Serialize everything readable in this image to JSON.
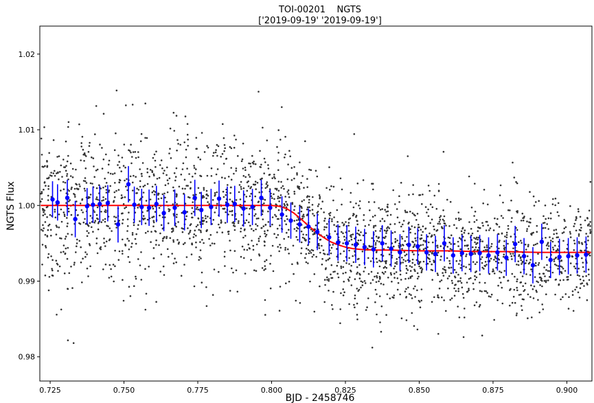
{
  "chart_data": {
    "type": "scatter",
    "title": "TOI-00201    NGTS",
    "subtitle": "['2019-09-19' '2019-09-19']",
    "xlabel": "BJD - 2458746",
    "ylabel": "NGTS Flux",
    "xlim": [
      0.7215,
      0.9085
    ],
    "ylim": [
      0.9768,
      1.0237
    ],
    "x_ticks": [
      0.725,
      0.75,
      0.775,
      0.8,
      0.825,
      0.85,
      0.875,
      0.9
    ],
    "x_tick_labels": [
      "0.725",
      "0.750",
      "0.775",
      "0.800",
      "0.825",
      "0.850",
      "0.875",
      "0.900"
    ],
    "y_ticks": [
      0.98,
      0.99,
      1.0,
      1.01,
      1.02
    ],
    "y_tick_labels": [
      "0.98",
      "0.99",
      "1.00",
      "1.01",
      "1.02"
    ],
    "grid": false,
    "colors": {
      "raw_points": "#333333",
      "binned_points": "#0000ff",
      "model_line": "#ff0000"
    },
    "series": [
      {
        "kind": "raw",
        "count": 2600,
        "x_range": [
          0.7218,
          0.9082
        ],
        "scatter_sigma_start": 0.0055,
        "scatter_sigma_end": 0.0037
      },
      {
        "kind": "binned",
        "x": [
          0.7258,
          0.7275,
          0.7308,
          0.7335,
          0.7375,
          0.7395,
          0.7418,
          0.7445,
          0.748,
          0.7515,
          0.7535,
          0.756,
          0.7585,
          0.761,
          0.7635,
          0.7672,
          0.7705,
          0.774,
          0.7762,
          0.7795,
          0.7822,
          0.785,
          0.7875,
          0.7905,
          0.7935,
          0.7965,
          0.7995,
          0.8035,
          0.8065,
          0.8095,
          0.8125,
          0.8155,
          0.8195,
          0.8225,
          0.8255,
          0.8285,
          0.8315,
          0.8345,
          0.8375,
          0.8405,
          0.8435,
          0.8465,
          0.8495,
          0.8525,
          0.8555,
          0.8585,
          0.8615,
          0.8645,
          0.8675,
          0.8705,
          0.8735,
          0.8765,
          0.8795,
          0.8825,
          0.8855,
          0.8885,
          0.8915,
          0.8945,
          0.8975,
          0.9005,
          0.9035,
          0.9065
        ],
        "y": [
          1.0008,
          1.0004,
          1.001,
          0.9982,
          0.9999,
          1.0001,
          1.0002,
          1.0003,
          0.9975,
          1.0028,
          1.0001,
          0.9998,
          0.9997,
          1.0002,
          0.999,
          0.9997,
          0.9991,
          1.001,
          0.9994,
          0.9998,
          1.0009,
          1.0001,
          1.0002,
          0.9996,
          0.9998,
          1.001,
          0.9997,
          0.9988,
          0.998,
          0.9975,
          0.9972,
          0.9965,
          0.9958,
          0.9951,
          0.995,
          0.9948,
          0.9945,
          0.9942,
          0.995,
          0.9943,
          0.9938,
          0.9948,
          0.9946,
          0.9938,
          0.9936,
          0.995,
          0.9934,
          0.9937,
          0.9936,
          0.9937,
          0.9934,
          0.9938,
          0.9931,
          0.9949,
          0.9933,
          0.9921,
          0.9952,
          0.9928,
          0.9932,
          0.9933,
          0.9934,
          0.9935
        ],
        "yerr": 0.0024
      },
      {
        "kind": "model",
        "x": [
          0.7218,
          0.8,
          0.8025,
          0.805,
          0.8075,
          0.81,
          0.8125,
          0.815,
          0.8175,
          0.82,
          0.8225,
          0.825,
          0.8275,
          0.83,
          0.835,
          0.84,
          0.85,
          0.86,
          0.87,
          0.88,
          0.89,
          0.9,
          0.9082
        ],
        "y": [
          1.0,
          1.0,
          0.9999,
          0.9996,
          0.999,
          0.9982,
          0.9973,
          0.9965,
          0.9958,
          0.9952,
          0.9948,
          0.9945,
          0.9943,
          0.9942,
          0.9941,
          0.9941,
          0.994,
          0.994,
          0.9939,
          0.9939,
          0.9938,
          0.9938,
          0.9938
        ]
      }
    ]
  }
}
